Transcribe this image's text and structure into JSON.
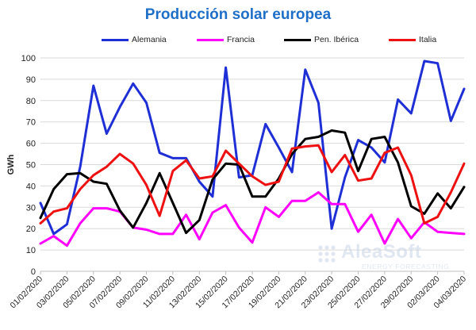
{
  "chart_data": {
    "type": "line",
    "title": "Producción solar europea",
    "ylabel": "GWh",
    "xlabel": "",
    "ylim": [
      0,
      100
    ],
    "yticks": [
      0,
      10,
      20,
      30,
      40,
      50,
      60,
      70,
      80,
      90,
      100
    ],
    "grid": "horizontal",
    "legend_position": "top",
    "xlim": [
      "01/02/2020",
      "04/03/2020"
    ],
    "x_tick_labels": [
      "01/02/2020",
      "03/02/2020",
      "05/02/2020",
      "07/02/2020",
      "09/02/2020",
      "11/02/2020",
      "13/02/2020",
      "15/02/2020",
      "17/02/2020",
      "19/02/2020",
      "21/02/2020",
      "23/02/2020",
      "25/02/2020",
      "27/02/2020",
      "29/02/2020",
      "02/03/2020",
      "04/03/2020"
    ],
    "x": [
      "01/02/2020",
      "02/02/2020",
      "03/02/2020",
      "04/02/2020",
      "05/02/2020",
      "06/02/2020",
      "07/02/2020",
      "08/02/2020",
      "09/02/2020",
      "10/02/2020",
      "11/02/2020",
      "12/02/2020",
      "13/02/2020",
      "14/02/2020",
      "15/02/2020",
      "16/02/2020",
      "17/02/2020",
      "18/02/2020",
      "19/02/2020",
      "20/02/2020",
      "21/02/2020",
      "22/02/2020",
      "23/02/2020",
      "24/02/2020",
      "25/02/2020",
      "26/02/2020",
      "27/02/2020",
      "28/02/2020",
      "29/02/2020",
      "01/03/2020",
      "02/03/2020",
      "03/03/2020",
      "04/03/2020"
    ],
    "series": [
      {
        "name": "Alemania",
        "color": "#1f2fd6",
        "values": [
          32,
          17.5,
          22,
          49,
          87,
          64.5,
          77,
          88,
          79,
          55.5,
          53,
          53,
          42,
          35,
          95.5,
          44,
          45,
          69,
          58,
          46.5,
          94.5,
          79,
          20,
          44,
          61.5,
          58,
          51,
          80.5,
          74,
          98.5,
          97.5,
          70.5,
          85.5
        ]
      },
      {
        "name": "Francia",
        "color": "#ff00ff",
        "values": [
          13,
          16.5,
          12,
          22.5,
          29.5,
          29.5,
          28,
          20.5,
          19.5,
          17.5,
          17.5,
          26.5,
          15,
          27.5,
          31,
          20.5,
          13.5,
          30,
          25.5,
          33,
          33,
          37,
          31.5,
          31.5,
          18.5,
          26.5,
          13,
          24.5,
          15.5,
          23,
          18.5,
          18,
          17.5
        ]
      },
      {
        "name": "Pen. Ibérica",
        "color": "#000000",
        "values": [
          25,
          38.5,
          45.5,
          46,
          42,
          41,
          28.5,
          20.5,
          32,
          46,
          32,
          18,
          24,
          43,
          50.5,
          50,
          35,
          35,
          43.5,
          55,
          62,
          63,
          66,
          65,
          47,
          62,
          63,
          51,
          30.5,
          27,
          36.5,
          29.5,
          39.5
        ]
      },
      {
        "name": "Italia",
        "color": "#ee1111",
        "values": [
          22.5,
          28,
          29.5,
          38.5,
          45,
          49,
          55,
          50.5,
          40.5,
          26,
          47,
          52,
          43.5,
          44.5,
          56.5,
          50.5,
          44.5,
          40.5,
          42,
          57.5,
          58.5,
          59,
          46.5,
          54.5,
          42.5,
          43.5,
          55.5,
          58,
          45,
          22.5,
          25.5,
          37,
          50.5
        ]
      }
    ]
  },
  "watermark": {
    "name": "AleaSoft",
    "tagline": "ENERGY FORECASTING"
  }
}
